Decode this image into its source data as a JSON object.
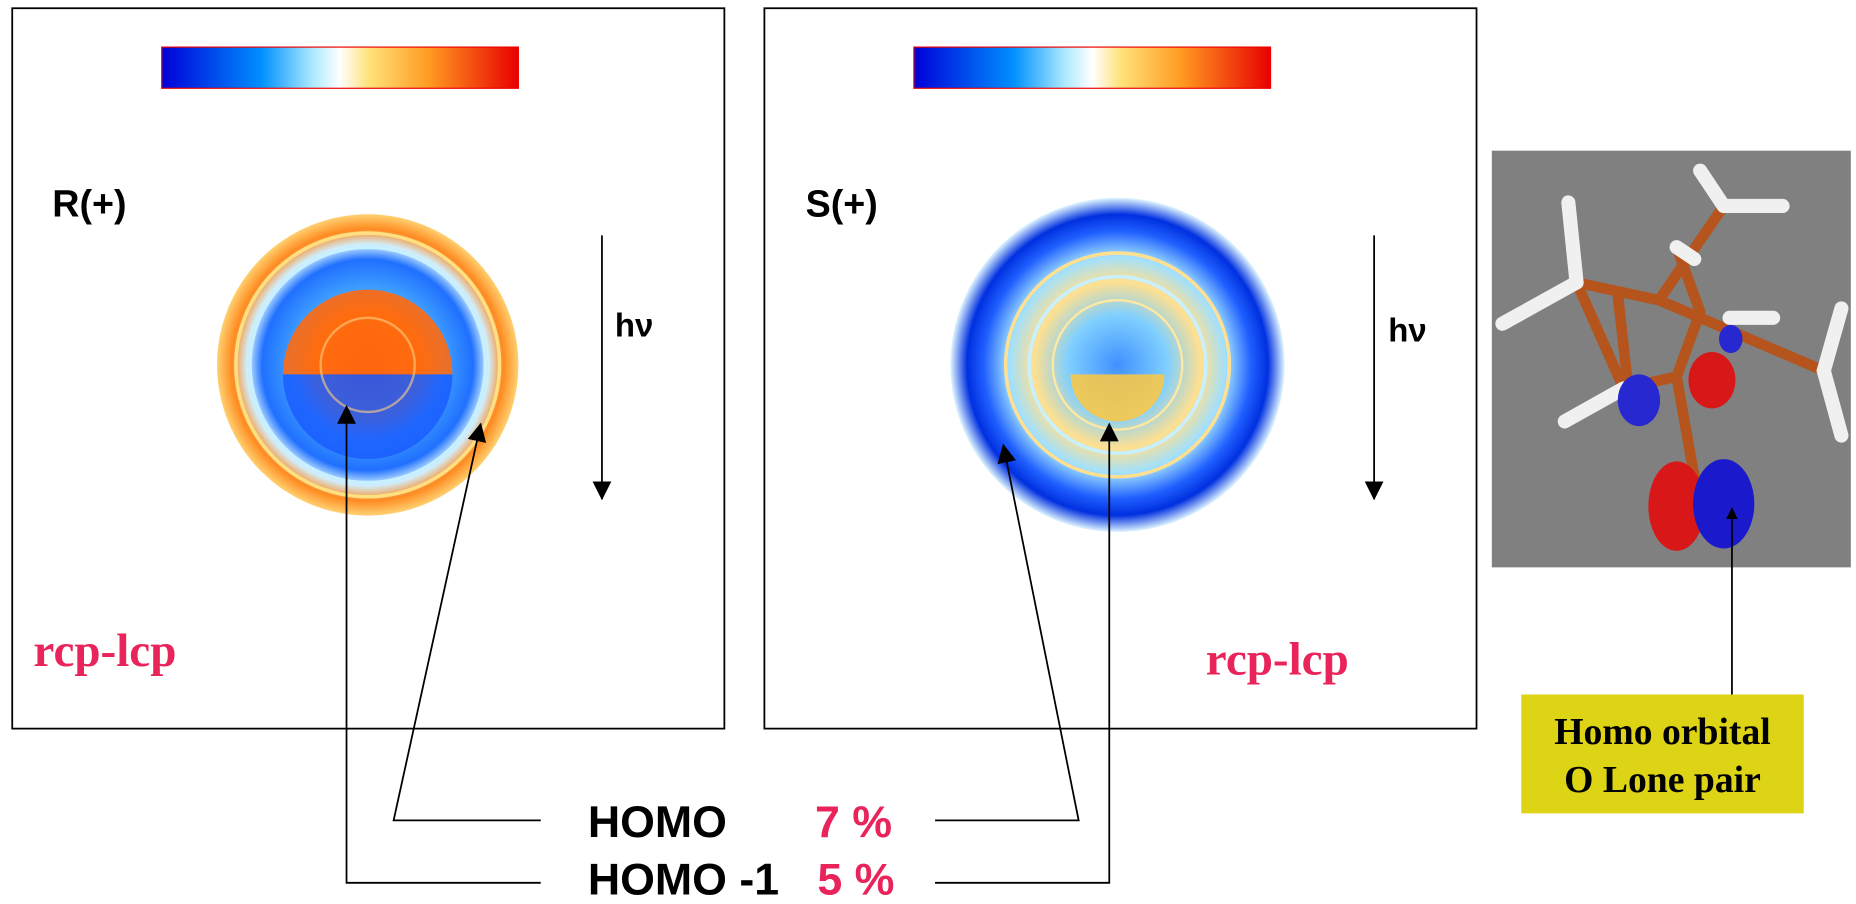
{
  "panels": [
    {
      "label": "R(+)",
      "arrow": "hν",
      "difference": "rcp-lcp"
    },
    {
      "label": "S(+)",
      "arrow": "hν",
      "difference": "rcp-lcp"
    }
  ],
  "legend": [
    {
      "orbital": "HOMO",
      "percent": "7 %"
    },
    {
      "orbital": "HOMO -1",
      "percent": "5 %"
    }
  ],
  "callout": {
    "line1": "Homo orbital",
    "line2": "O Lone pair"
  }
}
